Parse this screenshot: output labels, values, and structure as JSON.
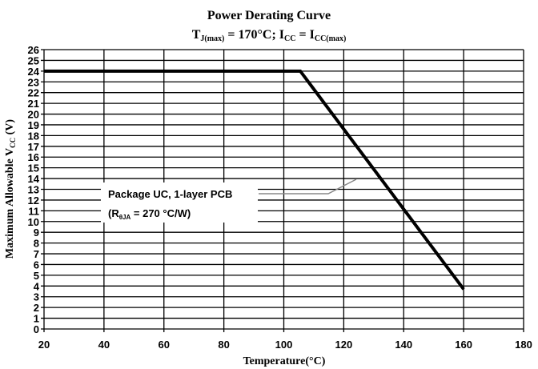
{
  "chart_data": {
    "type": "line",
    "title": "Power Derating Curve",
    "subtitle": {
      "t_symbol": "T",
      "t_sub": "J(max)",
      "t_value": " = 170°C; ",
      "i_symbol": "I",
      "i_sub": "CC",
      "eq": " = ",
      "i2_symbol": "I",
      "i2_sub": "CC(max)"
    },
    "xlabel": "Temperature(°C)",
    "ylabel": {
      "pre": "Maximum  Allowable  V",
      "sub": "CC",
      "post": " (V)"
    },
    "xlim": [
      20,
      180
    ],
    "ylim": [
      0,
      26
    ],
    "xticks": [
      20,
      40,
      60,
      80,
      100,
      120,
      140,
      160,
      180
    ],
    "yticks": [
      0,
      1,
      2,
      3,
      4,
      5,
      6,
      7,
      8,
      9,
      10,
      11,
      12,
      13,
      14,
      15,
      16,
      17,
      18,
      19,
      20,
      21,
      22,
      23,
      24,
      25,
      26
    ],
    "grid": true,
    "series": [
      {
        "name": "Package UC, 1-layer PCB",
        "x": [
          20,
          105.5,
          160
        ],
        "y": [
          24,
          24,
          3.7
        ]
      }
    ],
    "annotation": {
      "line1": "Package UC, 1-layer PCB",
      "line2_pre": "(R",
      "line2_sub": "θJA",
      "line2_post": " = 270 °C/W)"
    }
  }
}
